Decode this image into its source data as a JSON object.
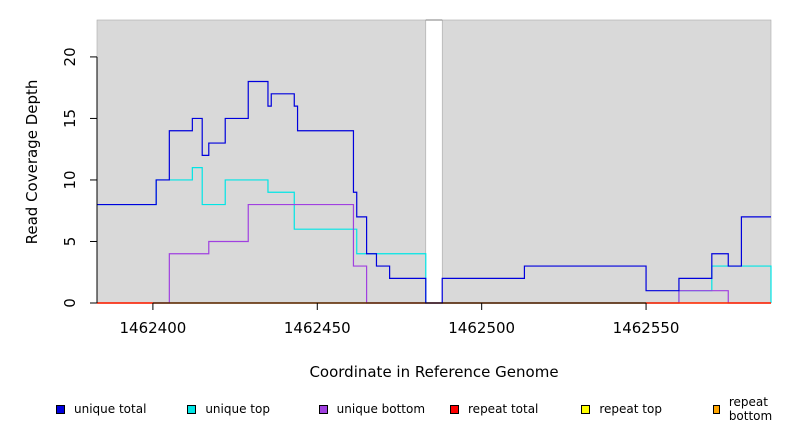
{
  "chart_data": {
    "type": "line",
    "title": "",
    "xlabel": "Coordinate in Reference Genome",
    "ylabel": "Read Coverage Depth",
    "xlim": [
      1462383,
      1462588
    ],
    "ylim": [
      0,
      23
    ],
    "x_ticks": [
      1462400,
      1462450,
      1462500,
      1462550
    ],
    "x_tick_labels": [
      "1462400",
      "1462450",
      "1462500",
      "1462550"
    ],
    "y_ticks": [
      0,
      5,
      10,
      15,
      20
    ],
    "y_tick_labels": [
      "0",
      "5",
      "10",
      "15",
      "20"
    ],
    "gap": [
      1462483,
      1462488
    ],
    "grid": false,
    "legend_position": "bottom",
    "series": [
      {
        "name": "unique top",
        "color": "#00e5e5",
        "x": [
          1462383,
          1462401,
          1462412,
          1462415,
          1462422,
          1462435,
          1462443,
          1462462,
          1462483,
          1462488,
          1462560,
          1462570,
          1462588
        ],
        "y": [
          8,
          10,
          11,
          8,
          10,
          9,
          6,
          4,
          0,
          0,
          1,
          3,
          0
        ]
      },
      {
        "name": "unique bottom",
        "color": "#a040e0",
        "x": [
          1462383,
          1462405,
          1462417,
          1462429,
          1462461,
          1462465,
          1462483,
          1462488,
          1462560,
          1462575,
          1462588
        ],
        "y": [
          0,
          4,
          5,
          8,
          3,
          0,
          0,
          0,
          1,
          0,
          0
        ]
      },
      {
        "name": "repeat top",
        "color": "#ffff00",
        "x": [
          1462383,
          1462588
        ],
        "y": [
          0,
          0
        ]
      },
      {
        "name": "repeat bottom",
        "color": "#ffa500",
        "x": [
          1462383,
          1462588
        ],
        "y": [
          0,
          0
        ]
      },
      {
        "name": "repeat total",
        "color": "#ff0000",
        "x": [
          1462383,
          1462588
        ],
        "y": [
          0,
          0
        ]
      },
      {
        "name": "unique total",
        "color": "#0000dd",
        "x": [
          1462383,
          1462401,
          1462405,
          1462412,
          1462415,
          1462417,
          1462422,
          1462429,
          1462435,
          1462436,
          1462443,
          1462444,
          1462461,
          1462462,
          1462465,
          1462468,
          1462472,
          1462483,
          1462488,
          1462513,
          1462550,
          1462560,
          1462570,
          1462575,
          1462579,
          1462588
        ],
        "y": [
          8,
          10,
          14,
          15,
          12,
          13,
          15,
          18,
          16,
          17,
          16,
          14,
          9,
          7,
          4,
          3,
          2,
          0,
          2,
          3,
          1,
          2,
          4,
          3,
          7,
          7
        ]
      }
    ],
    "legend": [
      {
        "name": "unique total",
        "color": "#0000dd"
      },
      {
        "name": "unique top",
        "color": "#00e5e5"
      },
      {
        "name": "unique bottom",
        "color": "#a040e0"
      },
      {
        "name": "repeat total",
        "color": "#ff0000"
      },
      {
        "name": "repeat top",
        "color": "#ffff00"
      },
      {
        "name": "repeat bottom",
        "color": "#ffa500"
      }
    ]
  }
}
